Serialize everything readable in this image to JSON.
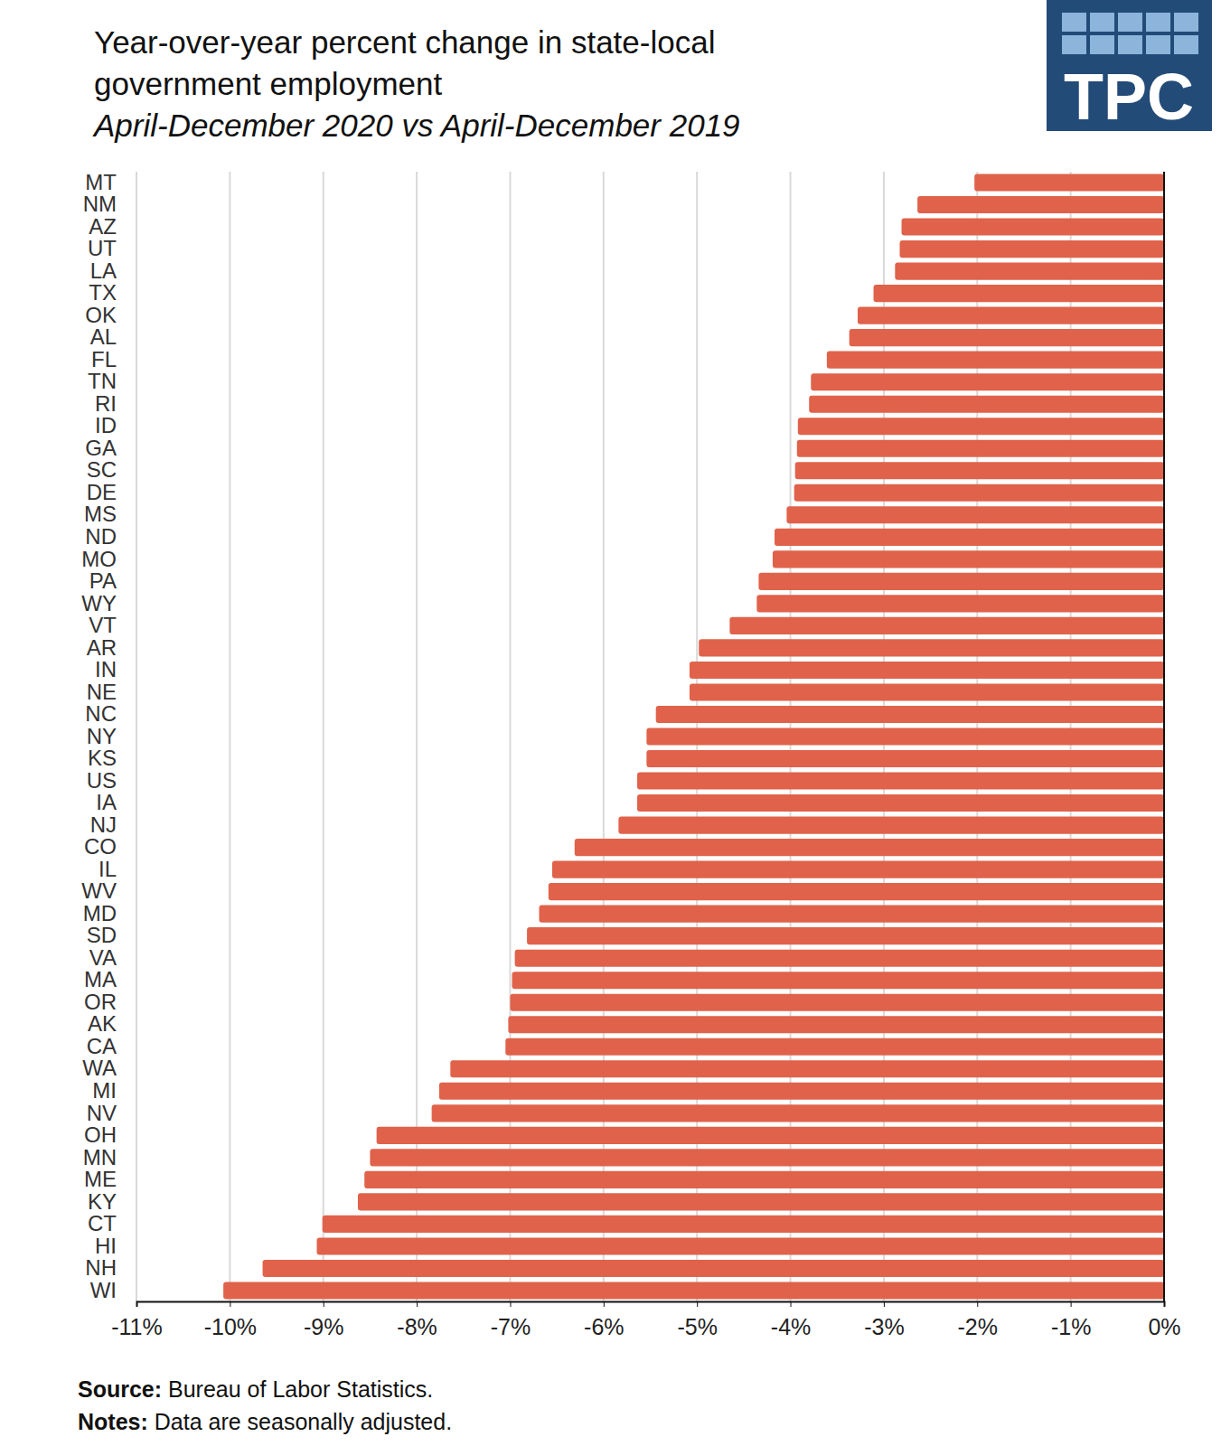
{
  "chart_data": {
    "type": "bar",
    "orientation": "horizontal",
    "title": "Year-over-year  percent change in state-local government employment",
    "subtitle": "April-December 2020 vs April-December 2019",
    "annotations": [
      "Source: Bureau of Labor Statistics.",
      "Notes: Data are seasonally adjusted."
    ],
    "logo": "TPC",
    "categories": [
      "MT",
      "NM",
      "AZ",
      "UT",
      "LA",
      "TX",
      "OK",
      "AL",
      "FL",
      "TN",
      "RI",
      "ID",
      "GA",
      "SC",
      "DE",
      "MS",
      "ND",
      "MO",
      "PA",
      "WY",
      "VT",
      "AR",
      "IN",
      "NE",
      "NC",
      "NY",
      "KS",
      "US",
      "IA",
      "NJ",
      "CO",
      "IL",
      "WV",
      "MD",
      "SD",
      "VA",
      "MA",
      "OR",
      "AK",
      "CA",
      "WA",
      "MI",
      "NV",
      "OH",
      "MN",
      "ME",
      "KY",
      "CT",
      "HI",
      "NH",
      "WI"
    ],
    "values": [
      -2.03,
      -2.64,
      -2.81,
      -2.83,
      -2.88,
      -3.11,
      -3.28,
      -3.37,
      -3.61,
      -3.78,
      -3.8,
      -3.92,
      -3.93,
      -3.95,
      -3.96,
      -4.04,
      -4.17,
      -4.19,
      -4.34,
      -4.36,
      -4.65,
      -4.98,
      -5.08,
      -5.08,
      -5.44,
      -5.54,
      -5.54,
      -5.64,
      -5.64,
      -5.84,
      -6.31,
      -6.55,
      -6.59,
      -6.69,
      -6.82,
      -6.95,
      -6.98,
      -7.0,
      -7.02,
      -7.05,
      -7.64,
      -7.76,
      -7.84,
      -8.43,
      -8.5,
      -8.56,
      -8.63,
      -9.01,
      -9.07,
      -9.65,
      -10.07
    ],
    "color": "#e0624a",
    "xlim": [
      -11,
      0
    ],
    "xticks": [
      {
        "value": -11,
        "label": "-11%"
      },
      {
        "value": -10,
        "label": "-10%"
      },
      {
        "value": -9,
        "label": "-9%"
      },
      {
        "value": -8,
        "label": "-8%"
      },
      {
        "value": -7,
        "label": "-7%"
      },
      {
        "value": -6,
        "label": "-6%"
      },
      {
        "value": -5,
        "label": "-5%"
      },
      {
        "value": -4,
        "label": "-4%"
      },
      {
        "value": -3,
        "label": "-3%"
      },
      {
        "value": -2,
        "label": "-2%"
      },
      {
        "value": -1,
        "label": "-1%"
      },
      {
        "value": 0,
        "label": "0%"
      }
    ],
    "grid": true
  }
}
